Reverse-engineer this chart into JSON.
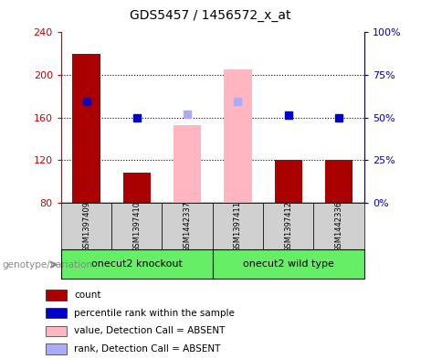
{
  "title": "GDS5457 / 1456572_x_at",
  "samples": [
    "GSM1397409",
    "GSM1397410",
    "GSM1442337",
    "GSM1397411",
    "GSM1397412",
    "GSM1442336"
  ],
  "ymin": 80,
  "ymax": 240,
  "yticks": [
    80,
    120,
    160,
    200,
    240
  ],
  "right_yticks": [
    0,
    25,
    50,
    75,
    100
  ],
  "bar_color_present": "#AA0000",
  "bar_color_absent": "#FFB6C1",
  "rank_color_present": "#0000CC",
  "rank_color_absent": "#AAAAFF",
  "count_values": [
    220,
    108,
    null,
    null,
    120,
    120
  ],
  "rank_values": [
    175,
    160,
    null,
    null,
    162,
    160
  ],
  "absent_count_values": [
    null,
    null,
    153,
    205,
    null,
    null
  ],
  "absent_rank_values": [
    null,
    null,
    163,
    175,
    null,
    null
  ],
  "left_axis_color": "#CC0000",
  "right_axis_color": "#0000BB",
  "group1_label": "onecut2 knockout",
  "group2_label": "onecut2 wild type",
  "group_color": "#66EE66",
  "genotype_label": "genotype/variation",
  "legend_items": [
    {
      "label": "count",
      "color": "#AA0000"
    },
    {
      "label": "percentile rank within the sample",
      "color": "#0000CC"
    },
    {
      "label": "value, Detection Call = ABSENT",
      "color": "#FFB6C1"
    },
    {
      "label": "rank, Detection Call = ABSENT",
      "color": "#AAAAFF"
    }
  ]
}
